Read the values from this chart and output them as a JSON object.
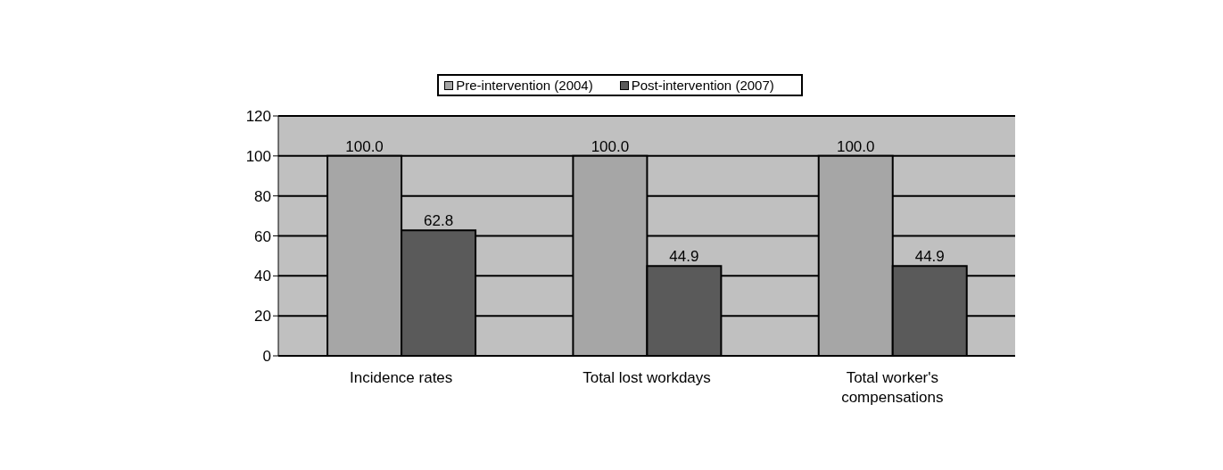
{
  "chart_data": {
    "type": "bar",
    "categories": [
      "Incidence rates",
      "Total lost workdays",
      "Total worker's compensations"
    ],
    "series": [
      {
        "name": "Pre-intervention (2004)",
        "color": "#a6a6a6",
        "values": [
          100.0,
          100.0,
          100.0
        ],
        "value_labels": [
          "100.0",
          "100.0",
          "100.0"
        ]
      },
      {
        "name": "Post-intervention (2007)",
        "color": "#5a5a5a",
        "values": [
          62.8,
          44.9,
          44.9
        ],
        "value_labels": [
          "62.8",
          "44.9",
          "44.9"
        ]
      }
    ],
    "ylim": [
      0,
      120
    ],
    "yticks": [
      0,
      20,
      40,
      60,
      80,
      100,
      120
    ],
    "grid": "y",
    "legend": "top"
  }
}
